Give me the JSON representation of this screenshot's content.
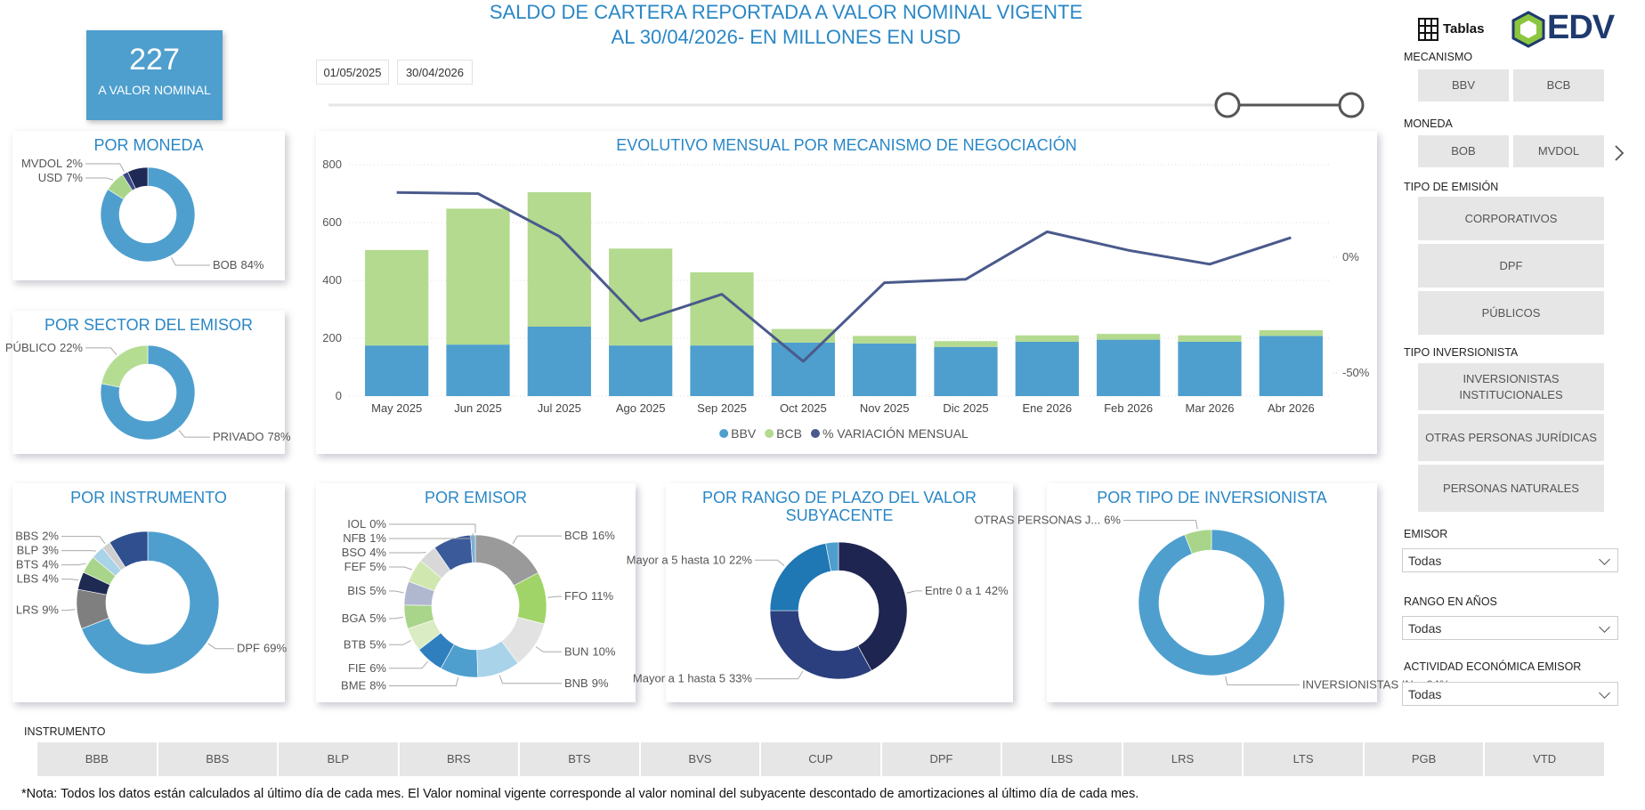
{
  "header": {
    "title": "SALDO DE CARTERA REPORTADA A VALOR NOMINAL VIGENTE",
    "subtitle": "AL 30/04/2026- EN MILLONES EN USD"
  },
  "kpi": {
    "value": 227,
    "label": "A VALOR NOMINAL"
  },
  "date_range": {
    "start": "01/05/2025",
    "end": "30/04/2026"
  },
  "chart_data": [
    {
      "type": "donut",
      "title": "POR MONEDA",
      "categories": [
        "BOB",
        "USD",
        "MVDOL",
        null
      ],
      "values": [
        84,
        7,
        2,
        7
      ],
      "value_labels": [
        "84%",
        "7%",
        "2%",
        null
      ],
      "colors": [
        "#4e9fce",
        "#a9d58a",
        "#3b4a86",
        "#1e2a55"
      ]
    },
    {
      "type": "donut",
      "title": "POR SECTOR DEL EMISOR",
      "categories": [
        "PRIVADO",
        "PÚBLICO"
      ],
      "values": [
        78,
        22
      ],
      "value_labels": [
        "78%",
        "22%"
      ],
      "colors": [
        "#4e9fce",
        "#b5dd92"
      ]
    },
    {
      "type": "bar",
      "stacked": true,
      "title": "EVOLUTIVO MENSUAL POR MECANISMO DE NEGOCIACIÓN",
      "categories": [
        "May 2025",
        "Jun 2025",
        "Jul 2025",
        "Ago 2025",
        "Sep 2025",
        "Oct 2025",
        "Nov 2025",
        "Dic 2025",
        "Ene 2026",
        "Feb 2026",
        "Mar 2026",
        "Abr 2026"
      ],
      "series": [
        {
          "name": "BBV",
          "color": "#4e9fce",
          "values": [
            175,
            178,
            240,
            175,
            175,
            185,
            182,
            170,
            188,
            195,
            188,
            208
          ]
        },
        {
          "name": "BCB",
          "color": "#b3da8f",
          "values": [
            330,
            470,
            465,
            335,
            253,
            47,
            26,
            20,
            22,
            20,
            22,
            20
          ]
        },
        {
          "name": "% VARIACIÓN MENSUAL",
          "color": "#4a5a8c",
          "type": "line",
          "axis": "y2",
          "values": [
            28,
            27.5,
            9,
            -27.5,
            -16,
            -45,
            -11,
            -9.5,
            11,
            3,
            -3,
            8.5
          ]
        }
      ],
      "ylim": [
        0,
        800
      ],
      "yticks": [
        0,
        200,
        400,
        600,
        800
      ],
      "y2lim": [
        -60,
        40
      ],
      "y2ticks": [
        {
          "value": 0,
          "label": "0%"
        },
        {
          "value": -50,
          "label": "-50%"
        }
      ],
      "grid": true,
      "legend": "bottom"
    },
    {
      "type": "donut",
      "title": "POR INSTRUMENTO",
      "categories": [
        "DPF",
        "LRS",
        "LBS",
        "BTS",
        "BLP",
        "BBS",
        null
      ],
      "values": [
        69,
        9,
        4,
        4,
        3,
        2,
        9
      ],
      "value_labels": [
        "69%",
        "9%",
        "4%",
        "4%",
        "3%",
        "2%",
        null
      ],
      "colors": [
        "#4e9fce",
        "#7f7f7f",
        "#1f2a52",
        "#a9d58a",
        "#a8d3e8",
        "#cfcfcf",
        "#2f4f8f"
      ]
    },
    {
      "type": "donut",
      "title": "POR EMISOR",
      "categories": [
        "BCB",
        "FFO",
        "BUN",
        "BNB",
        "BME",
        "FIE",
        "BTB",
        "BGA",
        "BIS",
        "FEF",
        "BSO",
        null,
        "NFB",
        "IOL"
      ],
      "values": [
        16,
        11,
        10,
        9,
        8,
        6,
        5,
        5,
        5,
        5,
        4,
        8,
        1,
        0
      ],
      "value_labels": [
        "16%",
        "11%",
        "10%",
        "9%",
        "8%",
        "6%",
        "5%",
        "5%",
        "5%",
        "5%",
        "4%",
        null,
        "1%",
        "0%"
      ],
      "colors": [
        "#9a9a9a",
        "#a0d468",
        "#e2e2e2",
        "#a8d3e8",
        "#4e9fce",
        "#2f7fbf",
        "#d9ecc3",
        "#a9d58a",
        "#b0b8d0",
        "#d0e8b0",
        "#d8d8d8",
        "#3a5a9a",
        "#7bb0d8",
        "#1e2a55"
      ]
    },
    {
      "type": "donut",
      "title": "POR RANGO DE PLAZO DEL VALOR SUBYACENTE",
      "categories": [
        "Entre 0 a 1",
        "Mayor a 1 hasta 5",
        "Mayor a 5 hasta 10",
        null
      ],
      "values": [
        42,
        33,
        22,
        3
      ],
      "value_labels": [
        "42%",
        "33%",
        "22%",
        null
      ],
      "colors": [
        "#1e2550",
        "#2b3f7e",
        "#1f77b4",
        "#4e9fce"
      ]
    },
    {
      "type": "donut",
      "title": "POR TIPO DE INVERSIONISTA",
      "categories": [
        "INVERSIONISTAS IN...",
        "OTRAS PERSONAS J..."
      ],
      "values": [
        94,
        6
      ],
      "value_labels": [
        "94%",
        "6%"
      ],
      "colors": [
        "#4e9fce",
        "#a9d58a"
      ]
    }
  ],
  "right_panel": {
    "tables_label": "Tablas",
    "logo": "EDV",
    "slicers": [
      {
        "title": "MECANISMO",
        "options": [
          "BBV",
          "BCB"
        ]
      },
      {
        "title": "MONEDA",
        "options": [
          "BOB",
          "MVDOL"
        ]
      },
      {
        "title": "TIPO DE EMISIÓN",
        "options": [
          "CORPORATIVOS",
          "DPF",
          "PÚBLICOS"
        ]
      },
      {
        "title": "TIPO INVERSIONISTA",
        "options": [
          "INVERSIONISTAS INSTITUCIONALES",
          "OTRAS PERSONAS JURÍDICAS",
          "PERSONAS NATURALES"
        ]
      }
    ],
    "dropdowns": [
      {
        "title": "EMISOR",
        "value": "Todas"
      },
      {
        "title": "RANGO EN AÑOS",
        "value": "Todas"
      },
      {
        "title": "ACTIVIDAD ECONÓMICA EMISOR",
        "value": "Todas"
      }
    ]
  },
  "instrument_slicer": {
    "title": "INSTRUMENTO",
    "options": [
      "BBB",
      "BBS",
      "BLP",
      "BRS",
      "BTS",
      "BVS",
      "CUP",
      "DPF",
      "LBS",
      "LRS",
      "LTS",
      "PGB",
      "VTD"
    ]
  },
  "note": "*Nota: Todos los datos están calculados al último día de cada mes. El Valor nominal vigente corresponde al valor nominal del subyacente descontado de amortizaciones al último día de cada mes."
}
